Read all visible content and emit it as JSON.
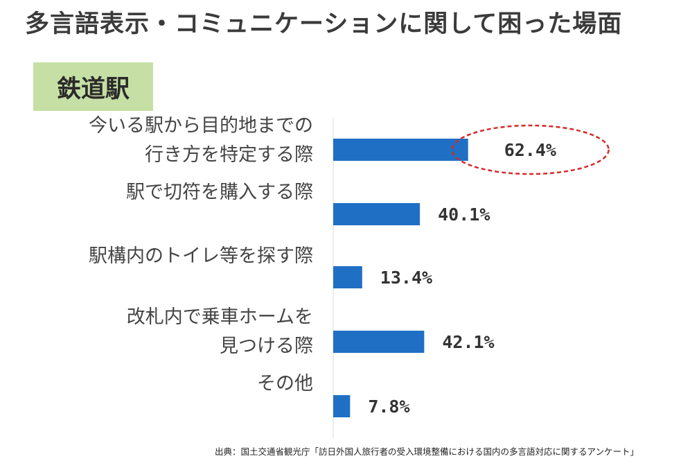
{
  "title": "多言語表示・コミュニケーションに関して困った場面",
  "section": "鉄道駅",
  "source": "出典：国土交通省観光庁「訪日外国人旅行者の受入環境整備における国内の多言語対応に関するアンケート」",
  "colors": {
    "bar": "#1f6fc5",
    "badge": "#c6dfa4",
    "highlight": "#d62828"
  },
  "chart_data": {
    "type": "bar",
    "orientation": "horizontal",
    "unit": "%",
    "categories": [
      [
        "今いる駅から目的地までの",
        "行き方を特定する際"
      ],
      [
        "駅で切符を購入する際"
      ],
      [
        "駅構内のトイレ等を探す際"
      ],
      [
        "改札内で乗車ホームを",
        "見つける際"
      ],
      [
        "その他"
      ]
    ],
    "values": [
      62.4,
      40.1,
      13.4,
      42.1,
      7.8
    ],
    "value_labels": [
      "62.4%",
      "40.1%",
      "13.4%",
      "42.1%",
      "7.8%"
    ],
    "highlighted_index": 0,
    "xlim": [
      0,
      100
    ],
    "grid": false,
    "legend": "none"
  }
}
